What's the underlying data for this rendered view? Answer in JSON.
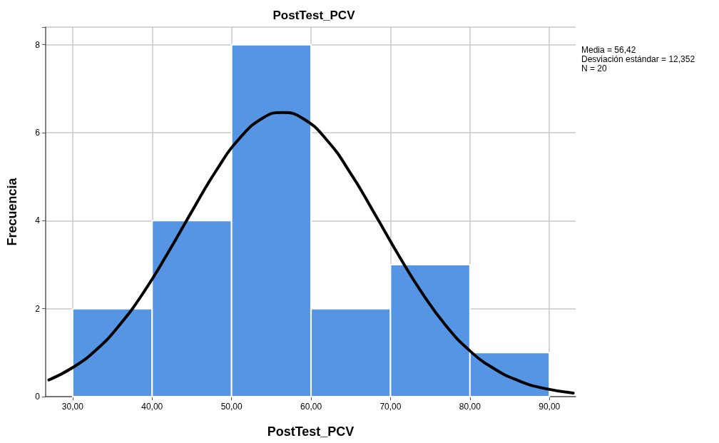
{
  "chart_data": {
    "type": "histogram",
    "title": "PostTest_PCV",
    "xlabel": "PostTest_PCV",
    "ylabel": "Frecuencia",
    "annotations": [
      "Media = 56,42",
      "Desviación estándar = 12,352",
      "N = 20"
    ],
    "bins": [
      30,
      40,
      50,
      60,
      70,
      80,
      90
    ],
    "series": [
      {
        "type": "histogram",
        "color": "#5595e3",
        "values": [
          2,
          4,
          8,
          2,
          3,
          1
        ]
      },
      {
        "type": "line",
        "color": "#000000",
        "x": [
          27,
          30,
          33,
          36,
          39,
          42,
          45,
          48,
          51,
          54,
          56.42,
          59,
          62,
          65,
          68,
          71,
          74,
          77,
          80,
          83,
          86,
          89,
          93
        ],
        "values": [
          0.38,
          0.66,
          1.07,
          1.65,
          2.39,
          3.27,
          4.21,
          5.12,
          5.87,
          6.34,
          6.46,
          6.32,
          5.83,
          5.07,
          4.16,
          3.22,
          2.35,
          1.61,
          1.04,
          0.64,
          0.37,
          0.2,
          0.08
        ]
      }
    ],
    "xlim": [
      26.6,
      93.3
    ],
    "xticks": [
      {
        "value": 30,
        "label": "30,00"
      },
      {
        "value": 40,
        "label": "40,00"
      },
      {
        "value": 50,
        "label": "50,00"
      },
      {
        "value": 60,
        "label": "60,00"
      },
      {
        "value": 70,
        "label": "70,00"
      },
      {
        "value": 80,
        "label": "80,00"
      },
      {
        "value": 90,
        "label": "90,00"
      }
    ],
    "ylim": [
      0,
      8.4
    ],
    "yticks": [
      0,
      2,
      4,
      6,
      8
    ],
    "grid": true,
    "marker": "none",
    "line_style": "solid"
  }
}
